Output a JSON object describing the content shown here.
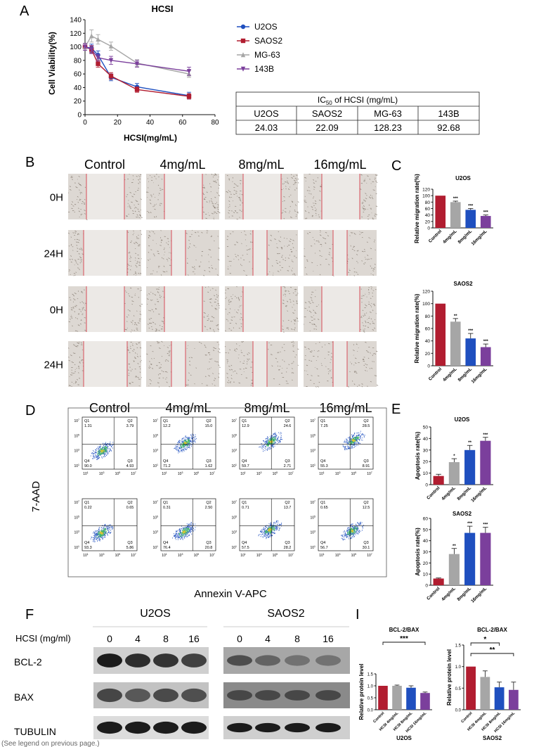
{
  "panels": {
    "A": "A",
    "B": "B",
    "C": "C",
    "D": "D",
    "E": "E",
    "F": "F",
    "I": "I"
  },
  "footer_note": "(See legend on previous page.)",
  "panel_a": {
    "chart_data": {
      "type": "line",
      "title": "HCSI",
      "xlabel": "HCSI(mg/mL)",
      "ylabel": "Cell Viability(%)",
      "xlim": [
        0,
        80
      ],
      "ylim": [
        0,
        140
      ],
      "x_ticks": [
        "0",
        "20",
        "40",
        "60",
        "80"
      ],
      "y_ticks": [
        "0",
        "20",
        "40",
        "60",
        "80",
        "100",
        "120",
        "140"
      ],
      "x": [
        0,
        4,
        8,
        16,
        32,
        64
      ],
      "legend_position": "right",
      "series": [
        {
          "name": "U2OS",
          "color": "#1f4fbf",
          "marker": "circle",
          "values": [
            100,
            98,
            88,
            55,
            41,
            28
          ],
          "errors": [
            5,
            6,
            6,
            5,
            5,
            5
          ]
        },
        {
          "name": "SAOS2",
          "color": "#b11d30",
          "marker": "square",
          "values": [
            100,
            96,
            75,
            57,
            37,
            27
          ],
          "errors": [
            5,
            5,
            5,
            5,
            4,
            4
          ]
        },
        {
          "name": "MG-63",
          "color": "#a6a6a6",
          "marker": "triangle",
          "values": [
            100,
            116,
            111,
            101,
            76,
            60
          ],
          "errors": [
            5,
            9,
            7,
            6,
            5,
            5
          ]
        },
        {
          "name": "143B",
          "color": "#7b3f9c",
          "marker": "triangle-down",
          "values": [
            100,
            96,
            84,
            80,
            75,
            64
          ],
          "errors": [
            5,
            6,
            5,
            6,
            5,
            6
          ]
        }
      ]
    },
    "ic50_table": {
      "title_prefix": "IC",
      "title_sub": "50",
      "title_suffix": " of HCSI (mg/mL)",
      "headers": [
        "U2OS",
        "SAOS2",
        "MG-63",
        "143B"
      ],
      "values": [
        "24.03",
        "22.09",
        "128.23",
        "92.68"
      ]
    }
  },
  "panel_b": {
    "columns": [
      "Control",
      "4mg/mL",
      "8mg/mL",
      "16mg/mL"
    ],
    "rows": [
      "0H",
      "24H",
      "0H",
      "24H"
    ]
  },
  "panel_c": {
    "chart_data": [
      {
        "type": "bar",
        "title": "U2OS",
        "ylabel": "Relative migration rate(%)",
        "categories": [
          "Control",
          "4mg/mL",
          "8mg/mL",
          "16mg/mL"
        ],
        "values": [
          100,
          80,
          56,
          37
        ],
        "errors": [
          0,
          3,
          4,
          3
        ],
        "significance": [
          "",
          "***",
          "***",
          "***"
        ],
        "ylim": [
          0,
          120
        ],
        "y_ticks": [
          "0",
          "20",
          "40",
          "60",
          "80",
          "100",
          "120"
        ],
        "colors": [
          "#b11d30",
          "#a6a6a6",
          "#1f4fbf",
          "#7b3f9c"
        ]
      },
      {
        "type": "bar",
        "title": "SAOS2",
        "ylabel": "Relative migration rate(%)",
        "categories": [
          "Control",
          "4mg/mL",
          "8mg/mL",
          "16mg/mL"
        ],
        "values": [
          100,
          71,
          44,
          30
        ],
        "errors": [
          0,
          5,
          8,
          5
        ],
        "significance": [
          "",
          "**",
          "***",
          "***"
        ],
        "ylim": [
          0,
          120
        ],
        "y_ticks": [
          "0",
          "20",
          "40",
          "60",
          "80",
          "100",
          "120"
        ],
        "colors": [
          "#b11d30",
          "#a6a6a6",
          "#1f4fbf",
          "#7b3f9c"
        ]
      }
    ]
  },
  "panel_d": {
    "columns": [
      "Control",
      "4mg/mL",
      "8mg/mL",
      "16mg/mL"
    ],
    "ylabel": "7-AAD",
    "xlabel": "Annexin V-APC",
    "quadrant_names": [
      "Q1",
      "Q2",
      "Q3",
      "Q4"
    ],
    "rows": [
      [
        {
          "q1": "1.31",
          "q2": "3.79",
          "q3": "4.93",
          "q4": "90.0"
        },
        {
          "q1": "12.2",
          "q2": "15.0",
          "q3": "1.62",
          "q4": "71.2"
        },
        {
          "q1": "12.9",
          "q2": "24.6",
          "q3": "2.71",
          "q4": "59.7"
        },
        {
          "q1": "7.25",
          "q2": "28.5",
          "q3": "8.91",
          "q4": "55.3"
        }
      ],
      [
        {
          "q1": "0.22",
          "q2": "0.65",
          "q3": "5.86",
          "q4": "93.3"
        },
        {
          "q1": "0.31",
          "q2": "2.50",
          "q3": "20.8",
          "q4": "76.4"
        },
        {
          "q1": "0.71",
          "q2": "13.7",
          "q3": "28.2",
          "q4": "57.5"
        },
        {
          "q1": "0.65",
          "q2": "12.5",
          "q3": "30.1",
          "q4": "56.7"
        }
      ]
    ]
  },
  "panel_e": {
    "chart_data": [
      {
        "type": "bar",
        "title": "U2OS",
        "ylabel": "Apoptosis rate(%)",
        "categories": [
          "Control",
          "4mg/mL",
          "8mg/mL",
          "16mg/mL"
        ],
        "values": [
          7.5,
          19.5,
          30,
          38
        ],
        "errors": [
          1.5,
          3,
          4,
          3
        ],
        "significance": [
          "",
          "*",
          "**",
          "***"
        ],
        "ylim": [
          0,
          50
        ],
        "y_ticks": [
          "0",
          "10",
          "20",
          "30",
          "40",
          "50"
        ],
        "colors": [
          "#b11d30",
          "#a6a6a6",
          "#1f4fbf",
          "#7b3f9c"
        ]
      },
      {
        "type": "bar",
        "title": "SAOS2",
        "ylabel": "Apoptosis rate(%)",
        "categories": [
          "Control",
          "4mg/mL",
          "8mg/mL",
          "16mg/mL"
        ],
        "values": [
          6,
          28,
          47,
          47
        ],
        "errors": [
          0.5,
          5,
          6,
          5
        ],
        "significance": [
          "",
          "**",
          "***",
          "***"
        ],
        "ylim": [
          0,
          60
        ],
        "y_ticks": [
          "0",
          "10",
          "20",
          "30",
          "40",
          "50",
          "60"
        ],
        "colors": [
          "#b11d30",
          "#a6a6a6",
          "#1f4fbf",
          "#7b3f9c"
        ]
      }
    ]
  },
  "panel_f": {
    "cell_lines": [
      "U2OS",
      "SAOS2"
    ],
    "dose_label": "HCSI (mg/ml)",
    "doses": [
      "0",
      "4",
      "8",
      "16"
    ],
    "proteins": [
      "BCL-2",
      "BAX",
      "TUBULIN"
    ]
  },
  "panel_i": {
    "chart_data": [
      {
        "type": "bar",
        "title": "BCL-2/BAX",
        "ylabel": "Relative protein level",
        "xlabel": "U2OS",
        "categories": [
          "Control",
          "HCSI 4mg/mL",
          "HCSI 8mg/mL",
          "HCSI 16mg/mL"
        ],
        "values": [
          1.0,
          1.0,
          0.92,
          0.7
        ],
        "errors": [
          0,
          0.03,
          0.08,
          0.04
        ],
        "ylim": [
          0,
          1.5
        ],
        "y_ticks": [
          "0.0",
          "0.5",
          "1.0",
          "1.5"
        ],
        "colors": [
          "#b11d30",
          "#a6a6a6",
          "#1f4fbf",
          "#7b3f9c"
        ],
        "brackets": [
          {
            "from": 0,
            "to": 3,
            "label": "***"
          }
        ]
      },
      {
        "type": "bar",
        "title": "BCL-2/BAX",
        "ylabel": "Relative protein level",
        "xlabel": "SAOS2",
        "categories": [
          "Control",
          "HCSI 4mg/mL",
          "HCSI 8mg/mL",
          "HCSI 16mg/mL"
        ],
        "values": [
          1.0,
          0.76,
          0.52,
          0.46
        ],
        "errors": [
          0,
          0.14,
          0.12,
          0.18
        ],
        "ylim": [
          0,
          1.5
        ],
        "y_ticks": [
          "0.0",
          "0.5",
          "1.0",
          "1.5"
        ],
        "colors": [
          "#b11d30",
          "#a6a6a6",
          "#1f4fbf",
          "#7b3f9c"
        ],
        "brackets": [
          {
            "from": 0,
            "to": 2,
            "label": "*"
          },
          {
            "from": 0,
            "to": 3,
            "label": "**"
          }
        ]
      }
    ]
  }
}
